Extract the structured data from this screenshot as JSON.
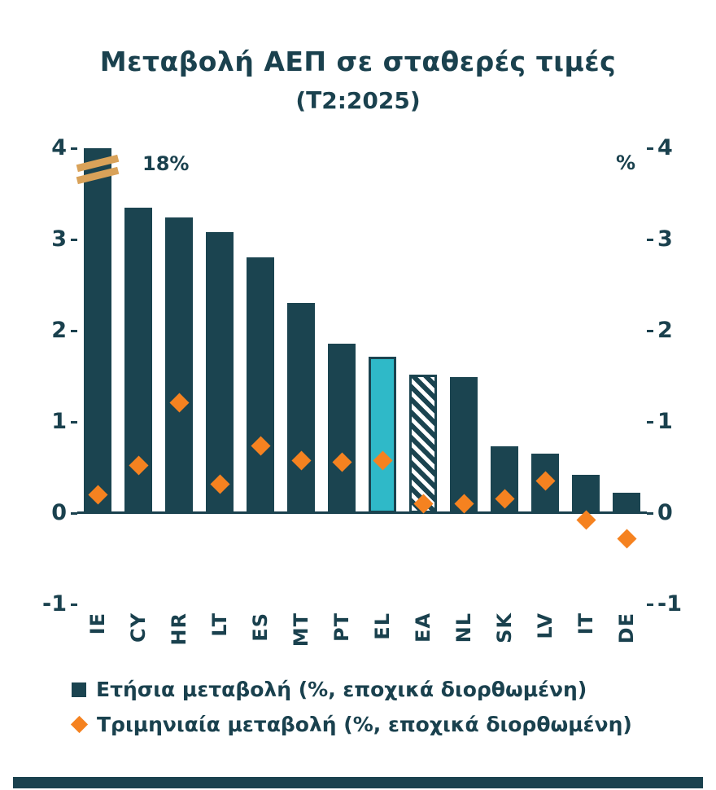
{
  "title": "Μεταβολή ΑΕΠ σε σταθερές τιμές",
  "subtitle": "(Τ2:2025)",
  "right_axis_unit": "%",
  "annotation_clipped_bar": "18%",
  "legend": [
    {
      "label": "Ετήσια μεταβολή (%, εποχικά διορθωμένη)",
      "marker": "square",
      "color": "#1B4450"
    },
    {
      "label": "Τριμηνιαία μεταβολή (%, εποχικά διορθωμένη)",
      "marker": "diamond",
      "color": "#F58220"
    }
  ],
  "chart_data": {
    "type": "bar",
    "title": "Μεταβολή ΑΕΠ σε σταθερές τιμές (Τ2:2025)",
    "categories": [
      "IE",
      "CY",
      "HR",
      "LT",
      "ES",
      "MT",
      "PT",
      "EL",
      "EA",
      "NL",
      "SK",
      "LV",
      "IT",
      "DE"
    ],
    "series": [
      {
        "name": "Ετήσια μεταβολή (%, εποχικά διορθωμένη)",
        "type": "bar",
        "values": [
          18,
          3.35,
          3.24,
          3.08,
          2.8,
          2.3,
          1.86,
          1.71,
          1.52,
          1.49,
          0.73,
          0.65,
          0.42,
          0.22
        ]
      },
      {
        "name": "Τριμηνιαία μεταβολή (%, εποχικά διορθωμένη)",
        "type": "scatter-diamond",
        "values": [
          0.2,
          0.52,
          1.21,
          0.32,
          0.74,
          0.58,
          0.56,
          0.58,
          0.1,
          0.1,
          0.16,
          0.35,
          -0.08,
          -0.28
        ]
      }
    ],
    "ylim": [
      -1,
      4
    ],
    "yticks": [
      4,
      3,
      2,
      1,
      0,
      -1
    ],
    "bar_clip_at": 4,
    "clipped_category": "IE",
    "highlight_category": "EL",
    "hatched_category": "EA",
    "grid": false,
    "legend_position": "bottom-left",
    "colors": {
      "bar": "#1B4450",
      "highlight": "#2FB9C8",
      "diamond": "#F58220",
      "break_mark": "#D9A259",
      "axis": "#1A414E"
    }
  }
}
